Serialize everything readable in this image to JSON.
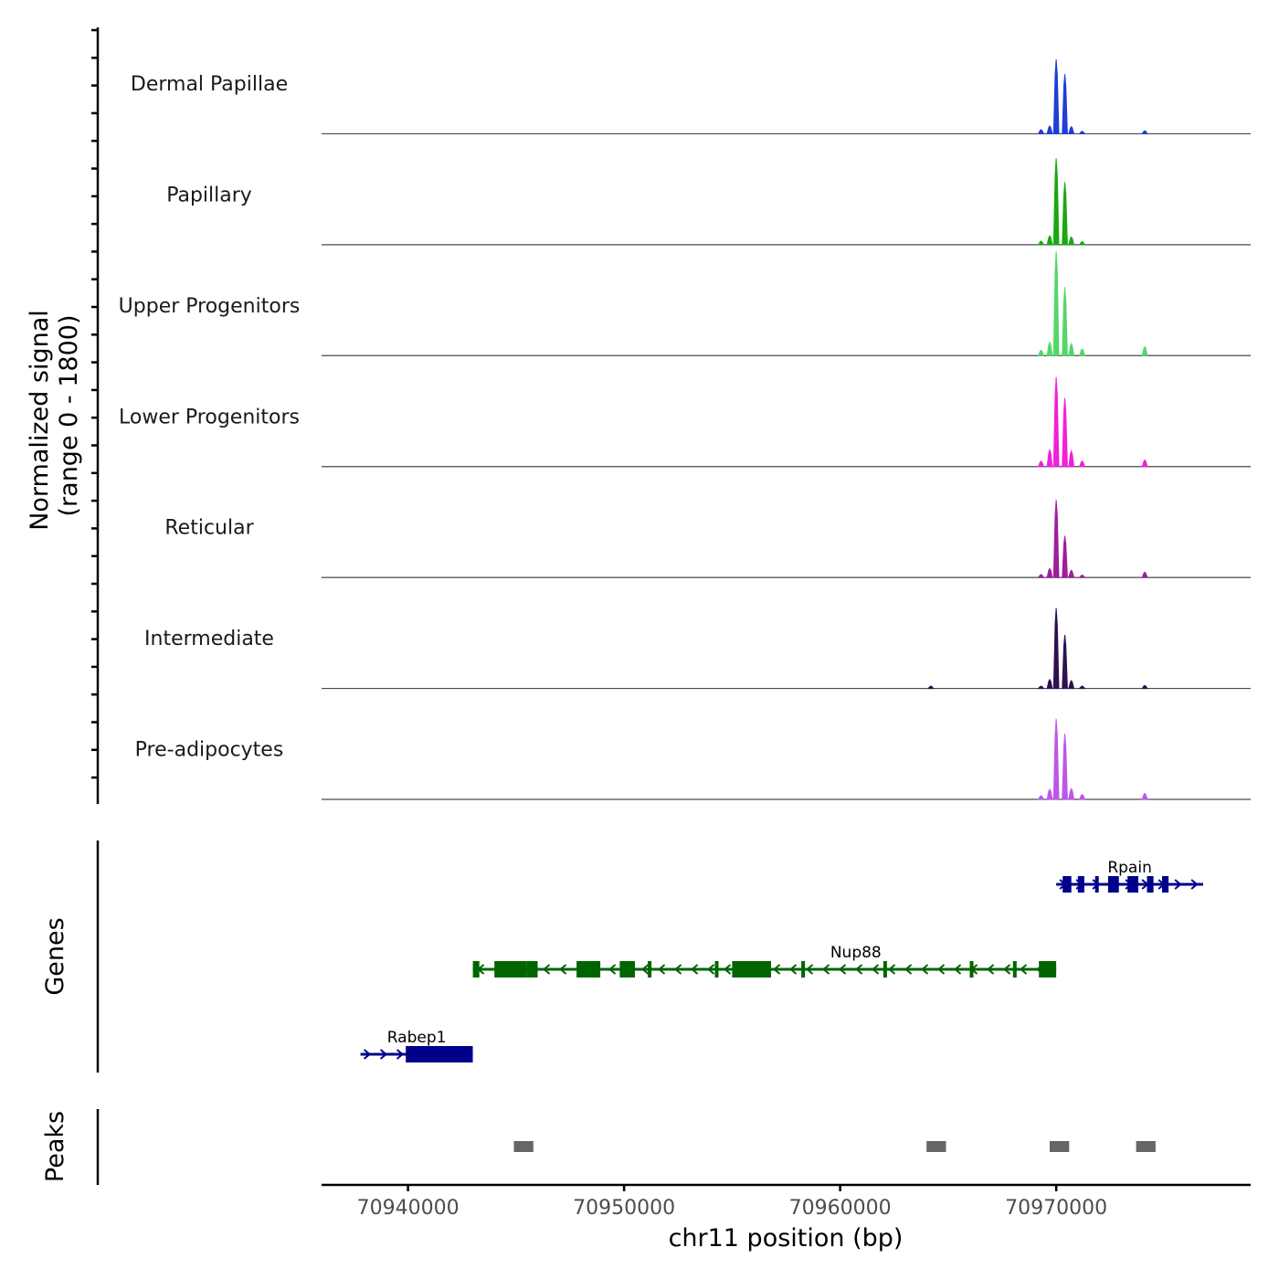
{
  "chart_data": {
    "type": "coverage",
    "chromosome": "chr11",
    "xlabel": "chr11 position (bp)",
    "xlim": [
      70936000,
      70979000
    ],
    "x_ticks": [
      70940000,
      70950000,
      70960000,
      70970000
    ],
    "x_tick_labels": [
      "70940000",
      "70950000",
      "70960000",
      "70970000"
    ],
    "signal_axis": {
      "title_line1": "Normalized signal",
      "title_line2": "(range 0 - 1800)",
      "range": [
        0,
        1800
      ]
    },
    "tracks": [
      {
        "name": "Dermal Papillae",
        "color": "#1f3fd6",
        "peaks": [
          [
            70970000,
            1250
          ],
          [
            70970400,
            1000
          ],
          [
            70969700,
            130
          ],
          [
            70969300,
            70
          ],
          [
            70970700,
            120
          ],
          [
            70971200,
            40
          ],
          [
            70974100,
            50
          ]
        ]
      },
      {
        "name": "Papillary",
        "color": "#1aa80f",
        "peaks": [
          [
            70970000,
            1450
          ],
          [
            70970400,
            1050
          ],
          [
            70969700,
            150
          ],
          [
            70969300,
            60
          ],
          [
            70970700,
            130
          ],
          [
            70971200,
            50
          ]
        ]
      },
      {
        "name": "Upper Progenitors",
        "color": "#55d66a",
        "peaks": [
          [
            70970000,
            1750
          ],
          [
            70970400,
            1150
          ],
          [
            70969700,
            220
          ],
          [
            70969300,
            90
          ],
          [
            70970700,
            200
          ],
          [
            70971200,
            110
          ],
          [
            70974100,
            150
          ]
        ]
      },
      {
        "name": "Lower Progenitors",
        "color": "#ee22d9",
        "peaks": [
          [
            70970000,
            1500
          ],
          [
            70970400,
            1150
          ],
          [
            70969700,
            280
          ],
          [
            70969300,
            90
          ],
          [
            70970700,
            260
          ],
          [
            70971200,
            90
          ],
          [
            70974100,
            110
          ]
        ]
      },
      {
        "name": "Reticular",
        "color": "#a11d9a",
        "peaks": [
          [
            70970000,
            1300
          ],
          [
            70970400,
            700
          ],
          [
            70969700,
            150
          ],
          [
            70969300,
            50
          ],
          [
            70970700,
            120
          ],
          [
            70971200,
            40
          ],
          [
            70974100,
            90
          ]
        ]
      },
      {
        "name": "Intermediate",
        "color": "#2f1150",
        "peaks": [
          [
            70970000,
            1350
          ],
          [
            70970400,
            900
          ],
          [
            70969700,
            150
          ],
          [
            70969300,
            40
          ],
          [
            70970700,
            130
          ],
          [
            70971200,
            40
          ],
          [
            70964200,
            40
          ],
          [
            70974100,
            50
          ]
        ]
      },
      {
        "name": "Pre-adipocytes",
        "color": "#bc58e8",
        "peaks": [
          [
            70970000,
            1350
          ],
          [
            70970400,
            1100
          ],
          [
            70969700,
            170
          ],
          [
            70969300,
            60
          ],
          [
            70970700,
            180
          ],
          [
            70971200,
            80
          ],
          [
            70974100,
            100
          ]
        ]
      }
    ],
    "genes_panel_title": "Genes",
    "genes": [
      {
        "name": "Nup88",
        "start": 70943000,
        "end": 70970000,
        "strand": "-",
        "color": "#006400",
        "exons": [
          [
            70943000,
            70943300
          ],
          [
            70944000,
            70945500
          ],
          [
            70945500,
            70946000
          ],
          [
            70947800,
            70948900
          ],
          [
            70949800,
            70950500
          ],
          [
            70951100,
            70951200
          ],
          [
            70954200,
            70954300
          ],
          [
            70955000,
            70956800
          ],
          [
            70958200,
            70958300
          ],
          [
            70962000,
            70962100
          ],
          [
            70966000,
            70966100
          ],
          [
            70968000,
            70968100
          ],
          [
            70969200,
            70970000
          ]
        ]
      },
      {
        "name": "Rpain",
        "start": 70970000,
        "end": 70976800,
        "strand": "+",
        "color": "#00008b",
        "exons": [
          [
            70970300,
            70970700
          ],
          [
            70971000,
            70971300
          ],
          [
            70971800,
            70971900
          ],
          [
            70972400,
            70972900
          ],
          [
            70973300,
            70973800
          ],
          [
            70974200,
            70974500
          ],
          [
            70974900,
            70975200
          ]
        ]
      },
      {
        "name": "Rabep1",
        "start": 70937800,
        "end": 70943000,
        "strand": "+",
        "color": "#00008b",
        "exons": [
          [
            70939900,
            70943000
          ]
        ]
      }
    ],
    "peaks_panel_title": "Peaks",
    "peak_color": "#666666",
    "peaks": [
      [
        70944900,
        70945800
      ],
      [
        70964000,
        70964900
      ],
      [
        70969700,
        70970600
      ],
      [
        70973700,
        70974600
      ]
    ]
  }
}
